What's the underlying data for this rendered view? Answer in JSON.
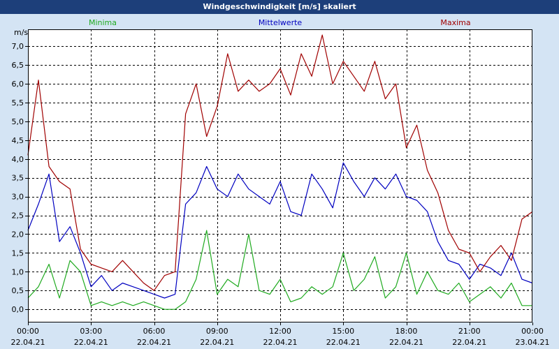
{
  "window": {
    "title": "Windgeschwindigkeit [m/s] skaliert"
  },
  "colors": {
    "background": "#d4e4f4",
    "plot_background": "#ffffff",
    "title_bar": "#1d3f7a",
    "minima": "#1faa1f",
    "mittelwerte": "#0000c0",
    "maxima": "#a00000"
  },
  "chart_data": {
    "type": "line",
    "title": "Windgeschwindigkeit [m/s] skaliert",
    "ylabel": "m/s",
    "xlabel": "",
    "ylim": [
      -0.35,
      7.45
    ],
    "xlim": [
      0,
      24
    ],
    "grid": true,
    "legend_position": "top",
    "y_ticks": [
      0.0,
      0.5,
      1.0,
      1.5,
      2.0,
      2.5,
      3.0,
      3.5,
      4.0,
      4.5,
      5.0,
      5.5,
      6.0,
      6.5,
      7.0
    ],
    "y_tick_labels": [
      "0,0",
      "0,5",
      "1,0",
      "1,5",
      "2,0",
      "2,5",
      "3,0",
      "3,5",
      "4,0",
      "4,5",
      "5,0",
      "5,5",
      "6,0",
      "6,5",
      "7,0"
    ],
    "x_ticks": [
      0,
      3,
      6,
      9,
      12,
      15,
      18,
      21,
      24
    ],
    "x_tick_times": [
      "00:00",
      "03:00",
      "06:00",
      "09:00",
      "12:00",
      "15:00",
      "18:00",
      "21:00",
      "00:00"
    ],
    "x_tick_dates": [
      "22.04.21",
      "22.04.21",
      "22.04.21",
      "22.04.21",
      "22.04.21",
      "22.04.21",
      "22.04.21",
      "22.04.21",
      "23.04.21"
    ],
    "series": [
      {
        "name": "Minima",
        "color": "#1faa1f",
        "x": [
          0,
          0.5,
          1.0,
          1.5,
          2.0,
          2.5,
          3.0,
          3.5,
          4.0,
          4.5,
          5.0,
          5.5,
          6.0,
          6.5,
          7.0,
          7.5,
          8.0,
          8.5,
          9.0,
          9.5,
          10.0,
          10.5,
          11.0,
          11.5,
          12.0,
          12.5,
          13.0,
          13.5,
          14.0,
          14.5,
          15.0,
          15.5,
          16.0,
          16.5,
          17.0,
          17.5,
          18.0,
          18.5,
          19.0,
          19.5,
          20.0,
          20.5,
          21.0,
          21.5,
          22.0,
          22.5,
          23.0,
          23.5,
          24.0
        ],
        "values": [
          0.3,
          0.6,
          1.2,
          0.3,
          1.3,
          1.0,
          0.1,
          0.2,
          0.1,
          0.2,
          0.1,
          0.2,
          0.1,
          0.0,
          0.0,
          0.2,
          0.8,
          2.1,
          0.4,
          0.8,
          0.6,
          2.0,
          0.5,
          0.4,
          0.8,
          0.2,
          0.3,
          0.6,
          0.4,
          0.6,
          1.5,
          0.5,
          0.8,
          1.4,
          0.3,
          0.6,
          1.5,
          0.4,
          1.0,
          0.5,
          0.4,
          0.7,
          0.2,
          0.4,
          0.6,
          0.3,
          0.7,
          0.1,
          0.1
        ]
      },
      {
        "name": "Mittelwerte",
        "color": "#0000c0",
        "x": [
          0,
          0.5,
          1.0,
          1.5,
          2.0,
          2.5,
          3.0,
          3.5,
          4.0,
          4.5,
          5.0,
          5.5,
          6.0,
          6.5,
          7.0,
          7.5,
          8.0,
          8.5,
          9.0,
          9.5,
          10.0,
          10.5,
          11.0,
          11.5,
          12.0,
          12.5,
          13.0,
          13.5,
          14.0,
          14.5,
          15.0,
          15.5,
          16.0,
          16.5,
          17.0,
          17.5,
          18.0,
          18.5,
          19.0,
          19.5,
          20.0,
          20.5,
          21.0,
          21.5,
          22.0,
          22.5,
          23.0,
          23.5,
          24.0
        ],
        "values": [
          2.1,
          2.8,
          3.6,
          1.8,
          2.2,
          1.5,
          0.6,
          0.9,
          0.5,
          0.7,
          0.6,
          0.5,
          0.4,
          0.3,
          0.4,
          2.8,
          3.1,
          3.8,
          3.2,
          3.0,
          3.6,
          3.2,
          3.0,
          2.8,
          3.4,
          2.6,
          2.5,
          3.6,
          3.2,
          2.7,
          3.9,
          3.4,
          3.0,
          3.5,
          3.2,
          3.6,
          3.0,
          2.9,
          2.6,
          1.8,
          1.3,
          1.2,
          0.8,
          1.2,
          1.1,
          0.9,
          1.5,
          0.8,
          0.7
        ]
      },
      {
        "name": "Maxima",
        "color": "#a00000",
        "x": [
          0,
          0.5,
          1.0,
          1.5,
          2.0,
          2.5,
          3.0,
          3.5,
          4.0,
          4.5,
          5.0,
          5.5,
          6.0,
          6.5,
          7.0,
          7.5,
          8.0,
          8.5,
          9.0,
          9.5,
          10.0,
          10.5,
          11.0,
          11.5,
          12.0,
          12.5,
          13.0,
          13.5,
          14.0,
          14.5,
          15.0,
          15.5,
          16.0,
          16.5,
          17.0,
          17.5,
          18.0,
          18.5,
          19.0,
          19.5,
          20.0,
          20.5,
          21.0,
          21.5,
          22.0,
          22.5,
          23.0,
          23.5,
          24.0
        ],
        "values": [
          4.1,
          6.1,
          3.8,
          3.4,
          3.2,
          1.6,
          1.2,
          1.1,
          1.0,
          1.3,
          1.0,
          0.7,
          0.5,
          0.9,
          1.0,
          5.2,
          6.0,
          4.6,
          5.4,
          6.8,
          5.8,
          6.1,
          5.8,
          6.0,
          6.4,
          5.7,
          6.8,
          6.2,
          7.3,
          6.0,
          6.6,
          6.2,
          5.8,
          6.6,
          5.6,
          6.0,
          4.3,
          4.9,
          3.7,
          3.1,
          2.1,
          1.6,
          1.5,
          1.0,
          1.4,
          1.7,
          1.3,
          2.4,
          2.6
        ]
      }
    ]
  }
}
